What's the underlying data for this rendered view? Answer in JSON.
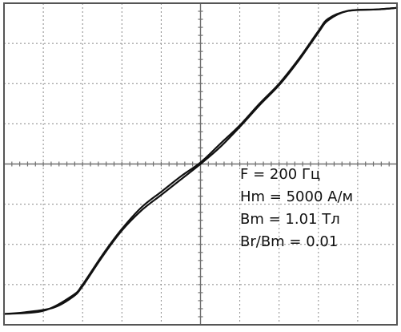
{
  "chart_data": {
    "type": "line",
    "title": "",
    "xlabel": "",
    "ylabel": "",
    "grid": true,
    "grid_divisions": {
      "x": 10,
      "y": 8
    },
    "xlim": [
      -5000,
      5000
    ],
    "ylim": [
      -1.04,
      1.04
    ],
    "annotations": [
      "F = 200 Гц",
      "Hm = 5000 А/м",
      "Bm = 1.01 Тл",
      "Br/Bm = 0.01"
    ],
    "series": [
      {
        "x": [
          -5000,
          -4500,
          -3750,
          -3250,
          -3000,
          -2500,
          -2000,
          -1500,
          -1000,
          -500,
          0,
          500,
          1000,
          1500,
          2000,
          2500,
          3000,
          3250,
          3750,
          4500,
          5000
        ],
        "y": [
          -0.97,
          -0.96,
          -0.93,
          -0.86,
          -0.79,
          -0.6,
          -0.43,
          -0.3,
          -0.2,
          -0.1,
          0,
          0.11,
          0.24,
          0.38,
          0.51,
          0.67,
          0.85,
          0.93,
          0.99,
          1.0,
          1.01
        ]
      },
      {
        "x": [
          -5000,
          -4000,
          -3250,
          -3000,
          -2500,
          -2000,
          -1500,
          -1000,
          -500,
          0,
          500,
          1000,
          1500,
          2000,
          2500,
          3000,
          3250,
          3750,
          4500,
          5000
        ],
        "y": [
          -0.97,
          -0.95,
          -0.85,
          -0.78,
          -0.59,
          -0.42,
          -0.28,
          -0.18,
          -0.08,
          0.01,
          0.13,
          0.25,
          0.39,
          0.52,
          0.68,
          0.86,
          0.94,
          0.99,
          1.0,
          1.01
        ]
      }
    ]
  }
}
